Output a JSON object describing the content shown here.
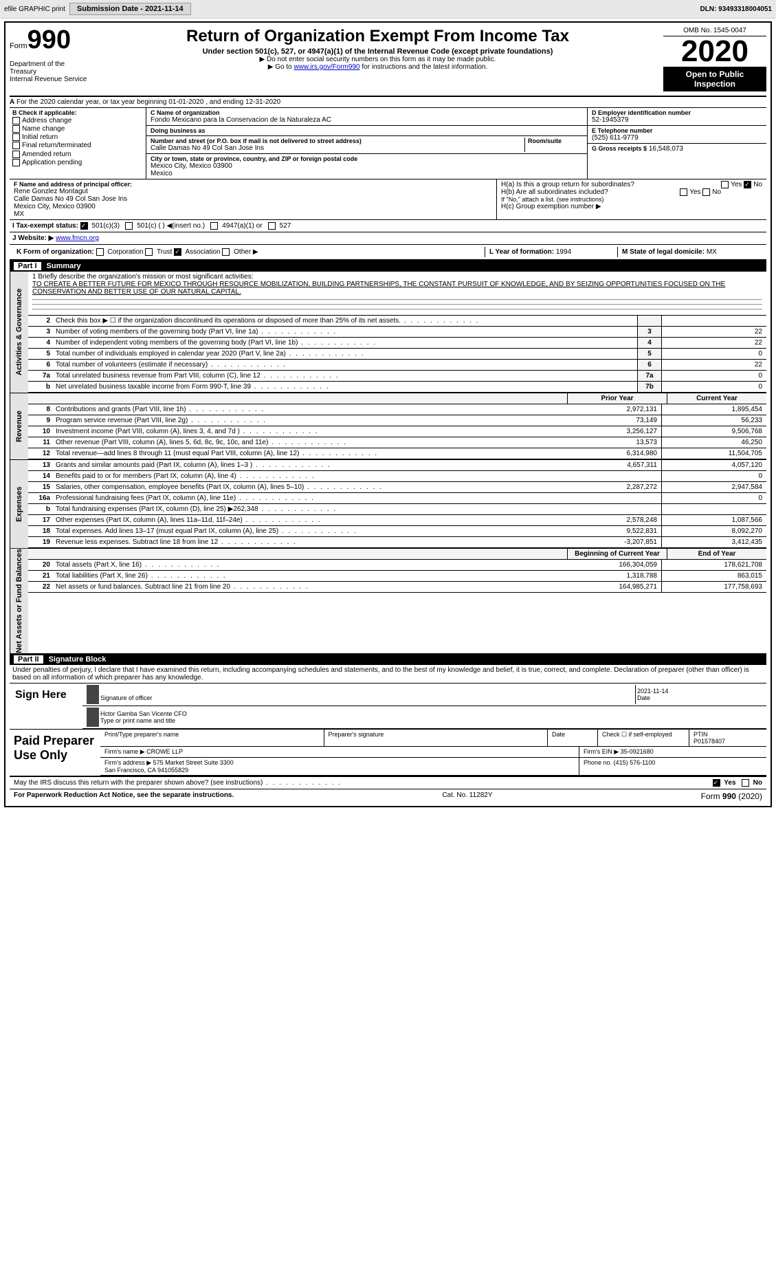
{
  "toolbar": {
    "efile": "efile GRAPHIC print",
    "submission_label": "Submission Date - 2021-11-14",
    "dln_label": "DLN: 93493318004051"
  },
  "header": {
    "form_word": "Form",
    "form_no": "990",
    "dept": "Department of the Treasury\nInternal Revenue Service",
    "title": "Return of Organization Exempt From Income Tax",
    "subtitle": "Under section 501(c), 527, or 4947(a)(1) of the Internal Revenue Code (except private foundations)",
    "note1": "▶ Do not enter social security numbers on this form as it may be made public.",
    "note2_pre": "▶ Go to ",
    "note2_link": "www.irs.gov/Form990",
    "note2_post": " for instructions and the latest information.",
    "omb": "OMB No. 1545-0047",
    "year": "2020",
    "open": "Open to Public Inspection"
  },
  "seca": {
    "a_text": "For the 2020 calendar year, or tax year beginning 01-01-2020   , and ending 12-31-2020"
  },
  "boxb": {
    "label": "B Check if applicable:",
    "items": [
      "Address change",
      "Name change",
      "Initial return",
      "Final return/terminated",
      "Amended return",
      "Application pending"
    ]
  },
  "boxc": {
    "c_label": "C Name of organization",
    "org": "Fondo Mexicano para la Conservacion de la Naturaleza AC",
    "dba_label": "Doing business as",
    "dba": "",
    "addr_label": "Number and street (or P.O. box if mail is not delivered to street address)",
    "room_label": "Room/suite",
    "street": "Calle Damas No 49 Col San Jose Ins",
    "city_label": "City or town, state or province, country, and ZIP or foreign postal code",
    "city": "Mexico City, Mexico  03900\nMexico",
    "f_label": "F  Name and address of principal officer:",
    "f_name": "Rene Gonzlez Montagut",
    "f_addr": "Calle Damas No 49 Col San Jose Ins\nMexico City, Mexico  03900\nMX"
  },
  "boxd": {
    "d_label": "D Employer identification number",
    "ein": "52-1945379",
    "e_label": "E Telephone number",
    "phone": "(525) 611-9779",
    "g_label": "G Gross receipts $",
    "gross": "16,548,073"
  },
  "hbox": {
    "ha": "H(a)  Is this a group return for subordinates?",
    "hb": "H(b)  Are all subordinates included?",
    "hb_note": "If \"No,\" attach a list. (see instructions)",
    "hc": "H(c)  Group exemption number ▶",
    "yes": "Yes",
    "no": "No"
  },
  "tax_status": {
    "i_label": "I    Tax-exempt status:",
    "opts": [
      "501(c)(3)",
      "501(c) (  ) ◀(insert no.)",
      "4947(a)(1) or",
      "527"
    ]
  },
  "website": {
    "j_label": "J  Website: ▶",
    "url": "www.fmcn.org"
  },
  "krow": {
    "k_label": "K Form of organization:",
    "opts": [
      "Corporation",
      "Trust",
      "Association",
      "Other ▶"
    ],
    "l_label": "L Year of formation:",
    "l_val": "1994",
    "m_label": "M State of legal domicile:",
    "m_val": "MX"
  },
  "parts": {
    "p1": "Part I",
    "p1t": "Summary",
    "p2": "Part II",
    "p2t": "Signature Block"
  },
  "mission": {
    "label": "1  Briefly describe the organization's mission or most significant activities:",
    "text": "TO CREATE A BETTER FUTURE FOR MEXICO THROUGH RESOURCE MOBILIZATION, BUILDING PARTNERSHIPS, THE CONSTANT PURSUIT OF KNOWLEDGE, AND BY SEIZING OPPORTUNITIES FOCUSED ON THE CONSERVATION AND BETTER USE OF OUR NATURAL CAPITAL."
  },
  "gov_lines": [
    {
      "n": "2",
      "d": "Check this box ▶ ☐ if the organization discontinued its operations or disposed of more than 25% of its net assets.",
      "box": "",
      "v": ""
    },
    {
      "n": "3",
      "d": "Number of voting members of the governing body (Part VI, line 1a)",
      "box": "3",
      "v": "22"
    },
    {
      "n": "4",
      "d": "Number of independent voting members of the governing body (Part VI, line 1b)",
      "box": "4",
      "v": "22"
    },
    {
      "n": "5",
      "d": "Total number of individuals employed in calendar year 2020 (Part V, line 2a)",
      "box": "5",
      "v": "0"
    },
    {
      "n": "6",
      "d": "Total number of volunteers (estimate if necessary)",
      "box": "6",
      "v": "22"
    },
    {
      "n": "7a",
      "d": "Total unrelated business revenue from Part VIII, column (C), line 12",
      "box": "7a",
      "v": "0"
    },
    {
      "n": "b",
      "d": "Net unrelated business taxable income from Form 990-T, line 39",
      "box": "7b",
      "v": "0"
    }
  ],
  "col_hdr": {
    "prior": "Prior Year",
    "current": "Current Year"
  },
  "rev_lines": [
    {
      "n": "8",
      "d": "Contributions and grants (Part VIII, line 1h)",
      "p": "2,972,131",
      "c": "1,895,454"
    },
    {
      "n": "9",
      "d": "Program service revenue (Part VIII, line 2g)",
      "p": "73,149",
      "c": "56,233"
    },
    {
      "n": "10",
      "d": "Investment income (Part VIII, column (A), lines 3, 4, and 7d )",
      "p": "3,256,127",
      "c": "9,506,768"
    },
    {
      "n": "11",
      "d": "Other revenue (Part VIII, column (A), lines 5, 6d, 8c, 9c, 10c, and 11e)",
      "p": "13,573",
      "c": "46,250"
    },
    {
      "n": "12",
      "d": "Total revenue—add lines 8 through 11 (must equal Part VIII, column (A), line 12)",
      "p": "6,314,980",
      "c": "11,504,705"
    }
  ],
  "exp_lines": [
    {
      "n": "13",
      "d": "Grants and similar amounts paid (Part IX, column (A), lines 1–3 )",
      "p": "4,657,311",
      "c": "4,057,120"
    },
    {
      "n": "14",
      "d": "Benefits paid to or for members (Part IX, column (A), line 4)",
      "p": "",
      "c": "0"
    },
    {
      "n": "15",
      "d": "Salaries, other compensation, employee benefits (Part IX, column (A), lines 5–10)",
      "p": "2,287,272",
      "c": "2,947,584"
    },
    {
      "n": "16a",
      "d": "Professional fundraising fees (Part IX, column (A), line 11e)",
      "p": "",
      "c": "0"
    },
    {
      "n": "b",
      "d": "Total fundraising expenses (Part IX, column (D), line 25) ▶262,348",
      "p": "",
      "c": ""
    },
    {
      "n": "17",
      "d": "Other expenses (Part IX, column (A), lines 11a–11d, 11f–24e)",
      "p": "2,578,248",
      "c": "1,087,566"
    },
    {
      "n": "18",
      "d": "Total expenses. Add lines 13–17 (must equal Part IX, column (A), line 25)",
      "p": "9,522,831",
      "c": "8,092,270"
    },
    {
      "n": "19",
      "d": "Revenue less expenses. Subtract line 18 from line 12",
      "p": "-3,207,851",
      "c": "3,412,435"
    }
  ],
  "na_hdr": {
    "prior": "Beginning of Current Year",
    "current": "End of Year"
  },
  "na_lines": [
    {
      "n": "20",
      "d": "Total assets (Part X, line 16)",
      "p": "166,304,059",
      "c": "178,621,708"
    },
    {
      "n": "21",
      "d": "Total liabilities (Part X, line 26)",
      "p": "1,318,788",
      "c": "863,015"
    },
    {
      "n": "22",
      "d": "Net assets or fund balances. Subtract line 21 from line 20",
      "p": "164,985,271",
      "c": "177,758,693"
    }
  ],
  "vlabels": {
    "gov": "Activities & Governance",
    "rev": "Revenue",
    "exp": "Expenses",
    "na": "Net Assets or Fund Balances"
  },
  "sig": {
    "penalties": "Under penalties of perjury, I declare that I have examined this return, including accompanying schedules and statements, and to the best of my knowledge and belief, it is true, correct, and complete. Declaration of preparer (other than officer) is based on all information of which preparer has any knowledge.",
    "sign_here": "Sign Here",
    "sig_officer": "Signature of officer",
    "date": "Date",
    "date_val": "2021-11-14",
    "officer_name": "Hctor Gamba San Vicente CFO",
    "type_name": "Type or print name and title"
  },
  "preparer": {
    "label": "Paid Preparer Use Only",
    "print_name": "Print/Type preparer's name",
    "prep_sig": "Preparer's signature",
    "date": "Date",
    "check_self": "Check ☐ if self-employed",
    "ptin_label": "PTIN",
    "ptin": "P01578407",
    "firm_name_label": "Firm's name   ▶",
    "firm_name": "CROWE LLP",
    "firm_ein_label": "Firm's EIN ▶",
    "firm_ein": "35-0921680",
    "firm_addr_label": "Firm's address ▶",
    "firm_addr": "575 Market Street Suite 3300\nSan Francisco, CA  941055829",
    "phone_label": "Phone no.",
    "phone": "(415) 576-1100"
  },
  "footer": {
    "discuss": "May the IRS discuss this return with the preparer shown above? (see instructions)",
    "yes": "Yes",
    "no": "No",
    "pra": "For Paperwork Reduction Act Notice, see the separate instructions.",
    "cat": "Cat. No. 11282Y",
    "form": "Form 990 (2020)"
  }
}
